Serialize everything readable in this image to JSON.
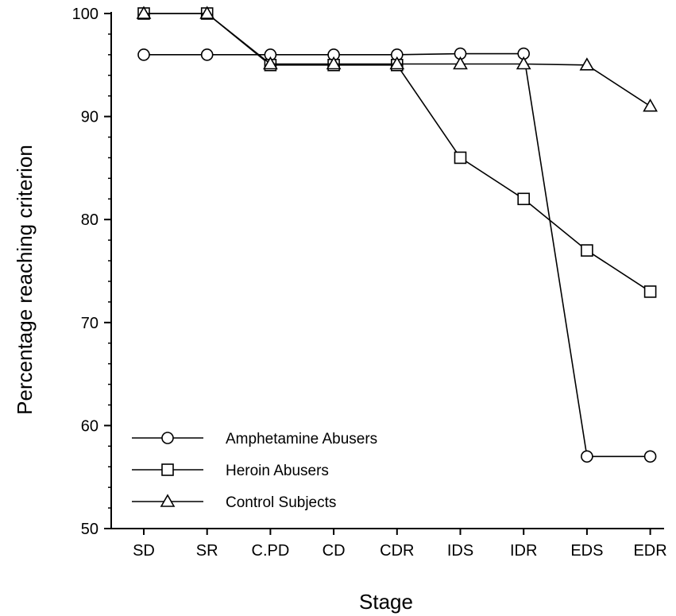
{
  "chart_data": {
    "type": "line",
    "title": "",
    "xlabel": "Stage",
    "ylabel": "Percentage reaching criterion",
    "categories": [
      "SD",
      "SR",
      "C.PD",
      "CD",
      "CDR",
      "IDS",
      "IDR",
      "EDS",
      "EDR"
    ],
    "ylim": [
      50,
      100
    ],
    "yticks": [
      50,
      60,
      70,
      80,
      90,
      100
    ],
    "grid": false,
    "legend_position": "bottom-left",
    "series": [
      {
        "name": "Amphetamine Abusers",
        "marker": "circle",
        "values": [
          96,
          96,
          96,
          96,
          96,
          96.1,
          96.1,
          57,
          57
        ]
      },
      {
        "name": "Heroin Abusers",
        "marker": "square",
        "values": [
          100,
          100,
          95,
          95,
          95,
          86,
          82,
          77,
          73
        ]
      },
      {
        "name": "Control Subjects",
        "marker": "triangle",
        "values": [
          100,
          100,
          95.1,
          95.1,
          95.1,
          95.1,
          95.1,
          95,
          91
        ]
      }
    ]
  }
}
